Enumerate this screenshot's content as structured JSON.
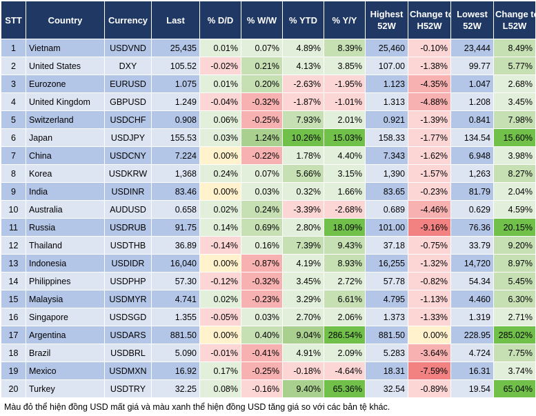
{
  "columns": [
    "STT",
    "Country",
    "Currency",
    "Last",
    "% D/D",
    "% W/W",
    "% YTD",
    "% Y/Y",
    "Highest 52W",
    "Change to H52W",
    "Lowest 52W",
    "Change to L52W"
  ],
  "palette": {
    "header_bg": "#1f3864",
    "row_odd": "#b4c6e7",
    "row_even": "#dde4f2",
    "pos_light": "#e2efda",
    "pos_mid": "#c6e0b4",
    "pos_strong": "#a9d08e",
    "pos_max": "#70c04a",
    "neg_light": "#fcd5d5",
    "neg_mid": "#f8b1b1",
    "neg_strong": "#f28282",
    "zero": "#fff2cc"
  },
  "rows": [
    {
      "stt": "1",
      "country": "Vietnam",
      "currency": "USDVND",
      "last": "25,435",
      "dd": "0.01%",
      "ww": "0.07%",
      "ytd": "4.89%",
      "yy": "8.39%",
      "high": "25,460",
      "chigh": "-0.10%",
      "low": "23,444",
      "clow": "8.49%"
    },
    {
      "stt": "2",
      "country": "United States",
      "currency": "DXY",
      "last": "105.52",
      "dd": "-0.02%",
      "ww": "0.21%",
      "ytd": "4.13%",
      "yy": "3.85%",
      "high": "107.00",
      "chigh": "-1.38%",
      "low": "99.77",
      "clow": "5.77%"
    },
    {
      "stt": "3",
      "country": "Eurozone",
      "currency": "EURUSD",
      "last": "1.075",
      "dd": "0.01%",
      "ww": "0.20%",
      "ytd": "-2.63%",
      "yy": "-1.95%",
      "high": "1.123",
      "chigh": "-4.35%",
      "low": "1.047",
      "clow": "2.68%"
    },
    {
      "stt": "4",
      "country": "United Kingdom",
      "currency": "GBPUSD",
      "last": "1.249",
      "dd": "-0.04%",
      "ww": "-0.32%",
      "ytd": "-1.87%",
      "yy": "-1.01%",
      "high": "1.313",
      "chigh": "-4.88%",
      "low": "1.208",
      "clow": "3.45%"
    },
    {
      "stt": "5",
      "country": "Switzerland",
      "currency": "USDCHF",
      "last": "0.908",
      "dd": "0.06%",
      "ww": "-0.25%",
      "ytd": "7.93%",
      "yy": "2.01%",
      "high": "0.921",
      "chigh": "-1.39%",
      "low": "0.841",
      "clow": "7.98%"
    },
    {
      "stt": "6",
      "country": "Japan",
      "currency": "USDJPY",
      "last": "155.53",
      "dd": "0.03%",
      "ww": "1.24%",
      "ytd": "10.26%",
      "yy": "15.03%",
      "high": "158.33",
      "chigh": "-1.77%",
      "low": "134.54",
      "clow": "15.60%"
    },
    {
      "stt": "7",
      "country": "China",
      "currency": "USDCNY",
      "last": "7.224",
      "dd": "0.00%",
      "ww": "-0.22%",
      "ytd": "1.78%",
      "yy": "4.40%",
      "high": "7.343",
      "chigh": "-1.62%",
      "low": "6.948",
      "clow": "3.98%"
    },
    {
      "stt": "8",
      "country": "Korea",
      "currency": "USDKRW",
      "last": "1,368",
      "dd": "0.24%",
      "ww": "0.07%",
      "ytd": "5.66%",
      "yy": "3.15%",
      "high": "1,390",
      "chigh": "-1.57%",
      "low": "1,263",
      "clow": "8.27%"
    },
    {
      "stt": "9",
      "country": "India",
      "currency": "USDINR",
      "last": "83.46",
      "dd": "0.00%",
      "ww": "0.03%",
      "ytd": "0.32%",
      "yy": "1.66%",
      "high": "83.65",
      "chigh": "-0.23%",
      "low": "81.79",
      "clow": "2.04%"
    },
    {
      "stt": "10",
      "country": "Australia",
      "currency": "AUDUSD",
      "last": "0.658",
      "dd": "0.02%",
      "ww": "0.24%",
      "ytd": "-3.39%",
      "yy": "-2.68%",
      "high": "0.689",
      "chigh": "-4.46%",
      "low": "0.629",
      "clow": "4.59%"
    },
    {
      "stt": "11",
      "country": "Russia",
      "currency": "USDRUB",
      "last": "91.75",
      "dd": "0.14%",
      "ww": "0.69%",
      "ytd": "2.80%",
      "yy": "18.09%",
      "high": "101.00",
      "chigh": "-9.16%",
      "low": "76.36",
      "clow": "20.15%"
    },
    {
      "stt": "12",
      "country": "Thailand",
      "currency": "USDTHB",
      "last": "36.89",
      "dd": "-0.14%",
      "ww": "0.16%",
      "ytd": "7.39%",
      "yy": "9.43%",
      "high": "37.18",
      "chigh": "-0.75%",
      "low": "33.79",
      "clow": "9.20%"
    },
    {
      "stt": "13",
      "country": "Indonesia",
      "currency": "USDIDR",
      "last": "16,040",
      "dd": "0.00%",
      "ww": "-0.87%",
      "ytd": "4.19%",
      "yy": "8.93%",
      "high": "16,255",
      "chigh": "-1.32%",
      "low": "14,720",
      "clow": "8.97%"
    },
    {
      "stt": "14",
      "country": "Philippines",
      "currency": "USDPHP",
      "last": "57.30",
      "dd": "-0.12%",
      "ww": "-0.32%",
      "ytd": "3.45%",
      "yy": "2.72%",
      "high": "57.78",
      "chigh": "-0.82%",
      "low": "54.34",
      "clow": "5.45%"
    },
    {
      "stt": "15",
      "country": "Malaysia",
      "currency": "USDMYR",
      "last": "4.741",
      "dd": "0.02%",
      "ww": "-0.23%",
      "ytd": "3.29%",
      "yy": "6.61%",
      "high": "4.795",
      "chigh": "-1.13%",
      "low": "4.460",
      "clow": "6.30%"
    },
    {
      "stt": "16",
      "country": "Singapore",
      "currency": "USDSGD",
      "last": "1.355",
      "dd": "-0.05%",
      "ww": "0.03%",
      "ytd": "2.70%",
      "yy": "2.06%",
      "high": "1.373",
      "chigh": "-1.33%",
      "low": "1.319",
      "clow": "2.71%"
    },
    {
      "stt": "17",
      "country": "Argentina",
      "currency": "USDARS",
      "last": "881.50",
      "dd": "0.00%",
      "ww": "0.40%",
      "ytd": "9.04%",
      "yy": "286.54%",
      "high": "881.50",
      "chigh": "0.00%",
      "low": "228.95",
      "clow": "285.02%"
    },
    {
      "stt": "18",
      "country": "Brazil",
      "currency": "USDBRL",
      "last": "5.090",
      "dd": "-0.01%",
      "ww": "-0.41%",
      "ytd": "4.91%",
      "yy": "2.09%",
      "high": "5.283",
      "chigh": "-3.64%",
      "low": "4.724",
      "clow": "7.75%"
    },
    {
      "stt": "19",
      "country": "Mexico",
      "currency": "USDMXN",
      "last": "16.92",
      "dd": "0.17%",
      "ww": "-0.25%",
      "ytd": "-0.18%",
      "yy": "-4.64%",
      "high": "18.31",
      "chigh": "-7.59%",
      "low": "16.31",
      "clow": "3.74%"
    },
    {
      "stt": "20",
      "country": "Turkey",
      "currency": "USDTRY",
      "last": "32.25",
      "dd": "0.08%",
      "ww": "-0.16%",
      "ytd": "9.40%",
      "yy": "65.36%",
      "high": "32.54",
      "chigh": "-0.89%",
      "low": "19.54",
      "clow": "65.04%"
    }
  ],
  "footnote": "Màu đỏ thể hiện đồng USD mất giá và màu xanh thể hiện đồng USD tăng giá so với các bản tệ khác."
}
